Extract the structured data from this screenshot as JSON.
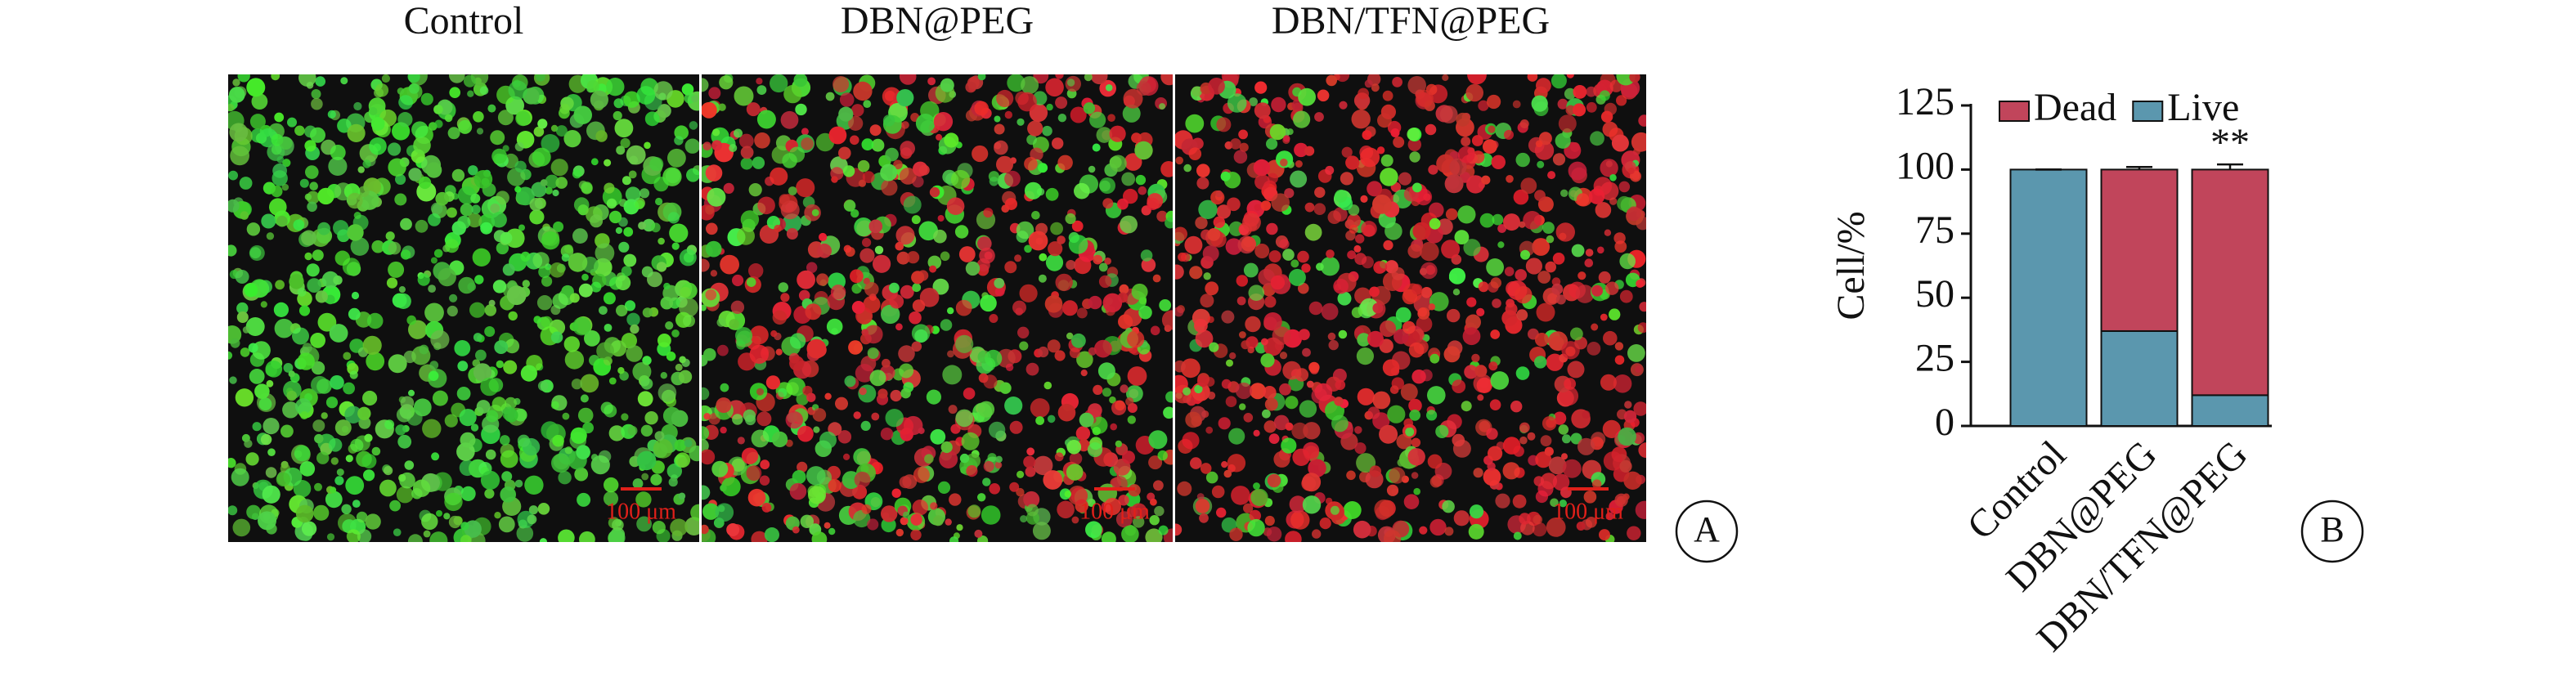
{
  "images": {
    "label": "A",
    "panels": [
      {
        "title": "Control",
        "scale_bar": "100 μm"
      },
      {
        "title": "DBN@PEG",
        "scale_bar": "100 μm"
      },
      {
        "title": "DBN/TFN@PEG",
        "scale_bar": "100 μm"
      }
    ]
  },
  "chart_data": {
    "type": "bar",
    "stacked": true,
    "panel_label": "B",
    "ylabel": "Cell/%",
    "categories": [
      "Control",
      "DBN@PEG",
      "DBN/TFN@PEG"
    ],
    "series": [
      {
        "name": "Live",
        "color": "#5b97ae",
        "values": [
          100,
          37,
          12
        ],
        "errors": [
          0,
          1,
          1.5
        ]
      },
      {
        "name": "Dead",
        "color": "#c1455b",
        "values": [
          0,
          63,
          88
        ],
        "errors": [
          0,
          1,
          2
        ]
      }
    ],
    "ylim": [
      0,
      125
    ],
    "yticks": [
      0,
      25,
      50,
      75,
      100,
      125
    ],
    "annotations": [
      {
        "category": "DBN/TFN@PEG",
        "text": "**"
      }
    ]
  }
}
